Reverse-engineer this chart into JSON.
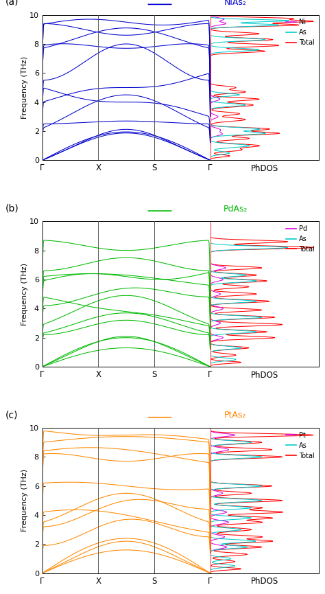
{
  "panels": [
    {
      "label": "(a)",
      "title": "NiAs₂",
      "title_color": "#0000cd",
      "disp_color": "#0000cd",
      "ylim": [
        0,
        10
      ],
      "yticks": [
        0,
        2,
        4,
        6,
        8,
        10
      ],
      "metal_label": "Ni",
      "xticklabels": [
        "Γ",
        "X",
        "S",
        "Γ"
      ],
      "legend_colors": {
        "metal": "#dd00dd",
        "As": "#00cccc",
        "Total": "#ff0000"
      }
    },
    {
      "label": "(b)",
      "title": "PdAs₂",
      "title_color": "#00bb00",
      "disp_color": "#00bb00",
      "ylim": [
        0,
        10
      ],
      "yticks": [
        0,
        2,
        4,
        6,
        8,
        10
      ],
      "metal_label": "Pd",
      "xticklabels": [
        "Γ",
        "X",
        "S",
        "Γ"
      ],
      "legend_colors": {
        "metal": "#dd00dd",
        "As": "#00cccc",
        "Total": "#ff0000"
      }
    },
    {
      "label": "(c)",
      "title": "PtAs₂",
      "title_color": "#ff8800",
      "disp_color": "#ff8800",
      "ylim": [
        0,
        10
      ],
      "yticks": [
        0,
        2,
        4,
        6,
        8,
        10
      ],
      "metal_label": "Pt",
      "xticklabels": [
        "Γ",
        "X",
        "S",
        "Γ"
      ],
      "legend_colors": {
        "metal": "#dd00dd",
        "As": "#00cccc",
        "Total": "#ff0000"
      }
    }
  ],
  "ylabel": "Frequency (THz)",
  "phdos_label": "PhDOS",
  "fig_width": 4.74,
  "fig_height": 8.65
}
